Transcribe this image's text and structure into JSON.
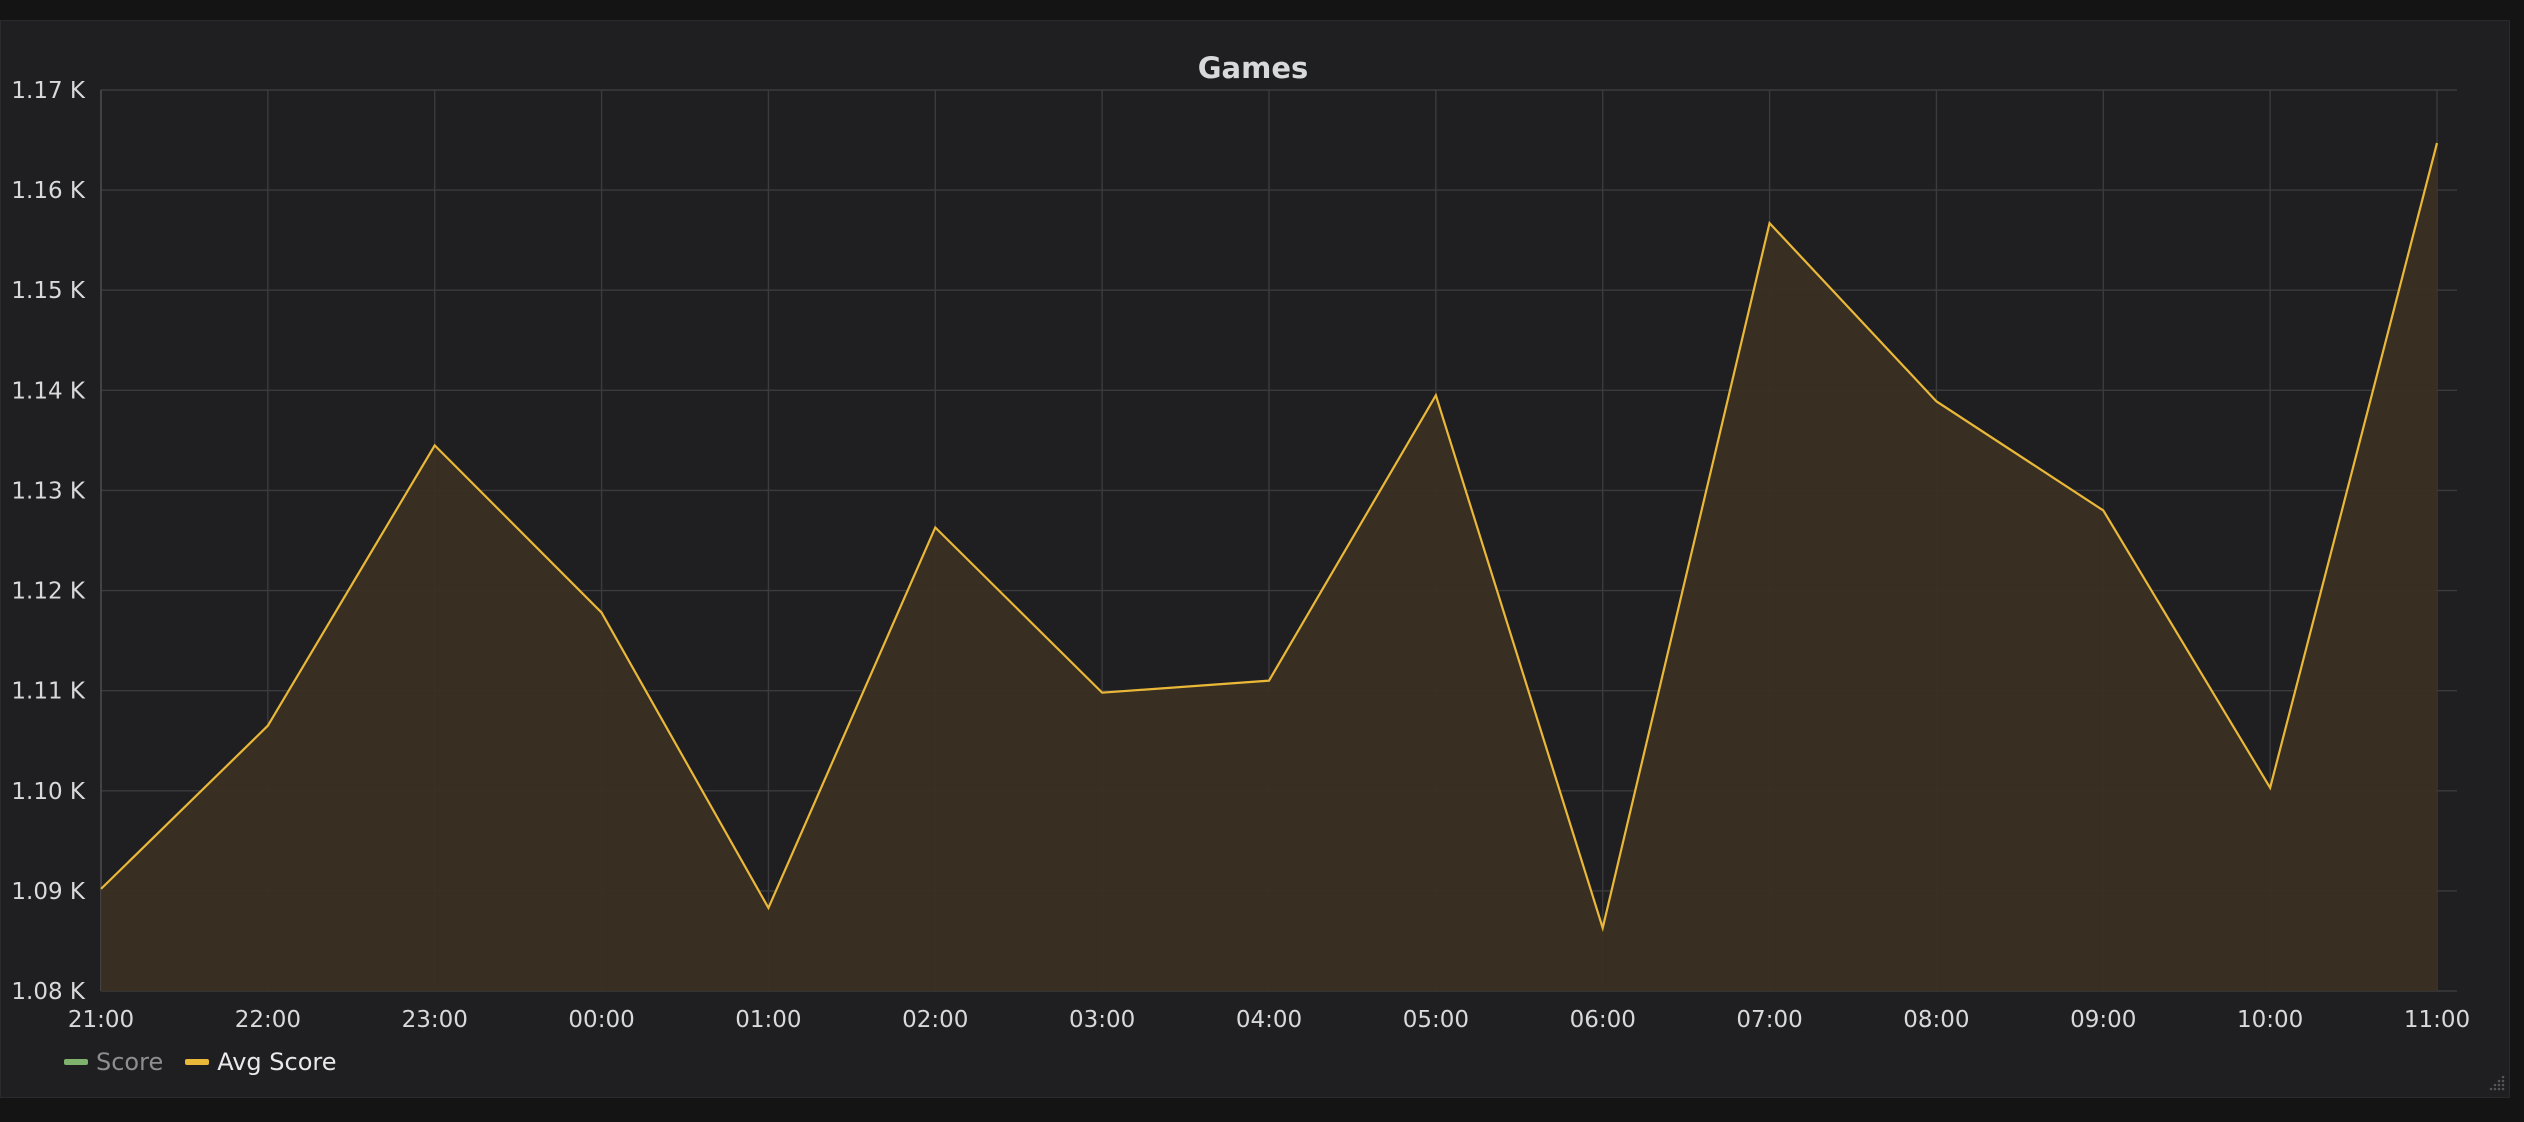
{
  "panel": {
    "title": "Games"
  },
  "colors": {
    "background": "#1f1e20",
    "grid": "#3b3b3d",
    "avg_score_line": "#eab839",
    "avg_score_fill": "#3a2f22",
    "score_line": "#7eb26d"
  },
  "legend": {
    "items": [
      {
        "name": "Score",
        "color": "#7eb26d",
        "hidden": true
      },
      {
        "name": "Avg Score",
        "color": "#eab839",
        "hidden": false
      }
    ]
  },
  "chart_data": {
    "type": "area",
    "title": "Games",
    "xlabel": "",
    "ylabel": "",
    "categories": [
      "21:00",
      "22:00",
      "23:00",
      "00:00",
      "01:00",
      "02:00",
      "03:00",
      "04:00",
      "05:00",
      "06:00",
      "07:00",
      "08:00",
      "09:00",
      "10:00",
      "11:00"
    ],
    "yticks": [
      "1.08 K",
      "1.09 K",
      "1.10 K",
      "1.11 K",
      "1.12 K",
      "1.13 K",
      "1.14 K",
      "1.15 K",
      "1.16 K",
      "1.17 K"
    ],
    "ylim": [
      1080,
      1170
    ],
    "grid": true,
    "legend_position": "bottom-left",
    "series": [
      {
        "name": "Avg Score",
        "color": "#eab839",
        "fill": true,
        "values": [
          1090.2,
          1106.5,
          1134.5,
          1117.8,
          1088.3,
          1126.3,
          1109.8,
          1111.0,
          1139.5,
          1086.3,
          1156.7,
          1138.9,
          1128.0,
          1100.3,
          1164.7
        ]
      }
    ]
  }
}
